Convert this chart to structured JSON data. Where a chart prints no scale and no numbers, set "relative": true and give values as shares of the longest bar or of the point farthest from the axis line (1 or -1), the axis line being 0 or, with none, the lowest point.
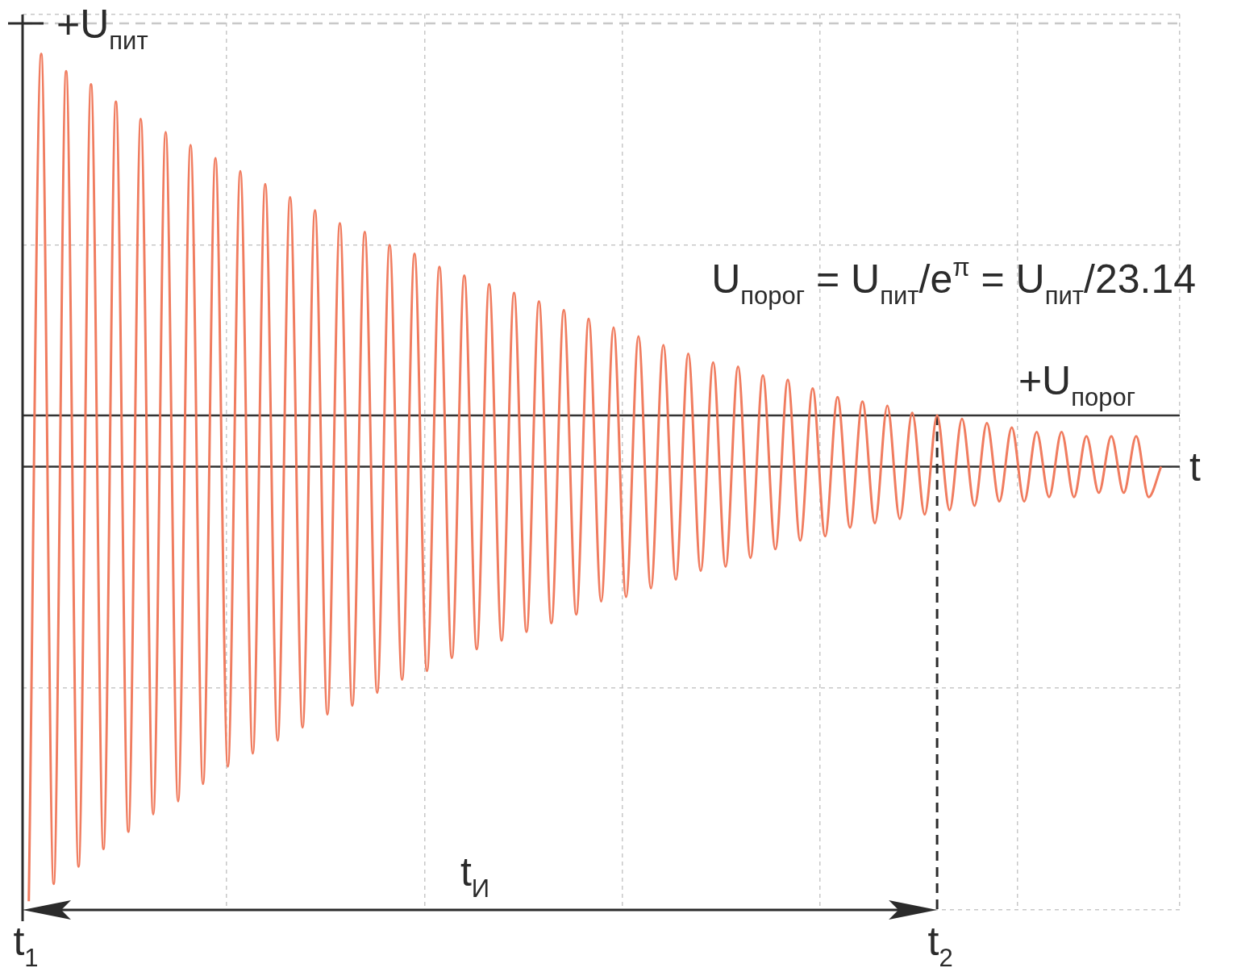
{
  "chart_data": {
    "type": "line",
    "relative": true,
    "annotations": [
      "U$_{порог}$ = U$_{пит}$/e$^{π}$ = U$_{пит}$/23.14",
      "t$_{И}$",
      "t$_{1}$",
      "t$_{2}$"
    ],
    "categories": [
      null,
      null,
      null,
      null,
      null,
      null,
      null,
      null,
      null,
      null,
      null,
      null,
      null,
      null,
      null,
      null,
      null,
      null,
      null,
      null,
      null,
      null,
      null,
      null,
      null,
      null,
      null,
      null,
      null,
      null,
      null,
      null,
      null,
      null,
      null,
      null,
      null,
      null,
      null,
      null,
      null,
      null,
      null,
      null,
      null,
      null,
      null,
      null,
      null,
      null,
      null,
      null,
      null,
      null,
      null,
      null,
      null,
      null,
      null,
      null,
      null,
      null,
      null,
      null,
      null,
      null,
      null,
      null,
      null,
      null,
      null,
      null,
      null,
      null,
      null,
      null,
      null,
      null,
      null,
      null,
      null,
      null,
      null,
      null,
      null,
      null,
      null,
      null,
      null,
      null,
      null,
      null
    ],
    "series": [
      {
        "color": "#f07c5f",
        "values": [
          -1,
          0.95,
          -0.96,
          0.91,
          -0.92,
          0.88,
          -0.88,
          0.84,
          -0.84,
          0.8,
          -0.8,
          0.77,
          -0.77,
          0.74,
          -0.73,
          0.71,
          -0.69,
          0.68,
          -0.66,
          0.65,
          -0.63,
          0.62,
          -0.6,
          0.59,
          -0.57,
          0.56,
          -0.55,
          0.54,
          -0.52,
          0.51,
          -0.49,
          0.49,
          -0.47,
          0.46,
          -0.44,
          0.44,
          -0.42,
          0.42,
          -0.4,
          0.4,
          -0.38,
          0.38,
          -0.36,
          0.36,
          -0.34,
          0.34,
          -0.31,
          0.32,
          -0.3,
          0.3,
          -0.28,
          0.28,
          -0.26,
          0.26,
          -0.24,
          0.24,
          -0.23,
          0.23,
          -0.21,
          0.21,
          -0.19,
          0.2,
          -0.17,
          0.18,
          -0.16,
          0.16,
          -0.14,
          0.15,
          -0.13,
          0.14,
          -0.12,
          0.124,
          -0.11,
          0.118,
          -0.1,
          0.11,
          -0.09,
          0.1,
          -0.08,
          0.09,
          -0.08,
          0.08,
          -0.07,
          0.08,
          -0.07,
          0.07,
          -0.06,
          0.07,
          -0.06,
          0.07,
          -0.07,
          0
        ]
      }
    ],
    "ref_lines": [
      {
        "axis": "y",
        "value": 1.02,
        "label": "+U$_{пит}$",
        "color": "#c8c8c8",
        "line_style": "dashed"
      },
      {
        "axis": "y",
        "value": 0.118,
        "label": "+U$_{порог}$",
        "color": "#333333",
        "line_style": "solid"
      },
      {
        "axis": "y",
        "value": 0,
        "label": "t",
        "color": "#333333",
        "line_style": "solid"
      }
    ],
    "grid": true,
    "legend": false,
    "line_style": "solid"
  }
}
